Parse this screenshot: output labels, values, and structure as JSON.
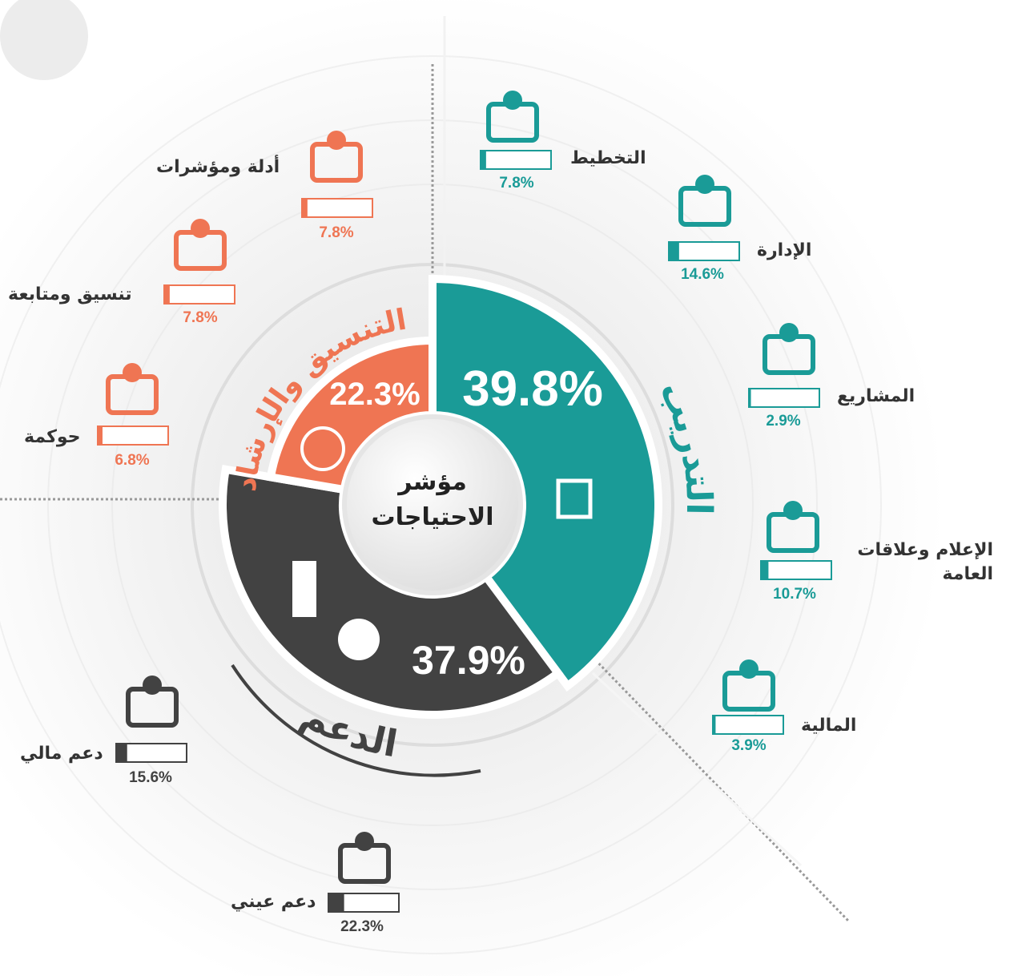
{
  "chart_data": {
    "type": "donut",
    "center_label": [
      "مؤشر",
      "الاحتياجات"
    ],
    "segments": [
      {
        "name": "التدريب",
        "color": "#1a9b97",
        "value": 39.8,
        "value_label": "39.8%",
        "items": [
          {
            "name": "التخطيط",
            "value": 7.8,
            "value_label": "7.8%"
          },
          {
            "name": "الإدارة",
            "value": 14.6,
            "value_label": "14.6%"
          },
          {
            "name": "المشاريع",
            "value": 2.9,
            "value_label": "2.9%"
          },
          {
            "name": "الإعلام وعلاقات العامة",
            "value": 10.7,
            "value_label": "10.7%"
          },
          {
            "name": "المالية",
            "value": 3.9,
            "value_label": "3.9%"
          }
        ]
      },
      {
        "name": "الدعم",
        "color": "#424242",
        "value": 37.9,
        "value_label": "37.9%",
        "items": [
          {
            "name": "دعم مالي",
            "value": 15.6,
            "value_label": "15.6%"
          },
          {
            "name": "دعم عيني",
            "value": 22.3,
            "value_label": "22.3%"
          }
        ]
      },
      {
        "name": "التنسيق والإرشاد",
        "color": "#ef7553",
        "value": 22.3,
        "value_label": "22.3%",
        "items": [
          {
            "name": "أدلة ومؤشرات",
            "value": 7.8,
            "value_label": "7.8%"
          },
          {
            "name": "تنسيق ومتابعة",
            "value": 7.8,
            "value_label": "7.8%"
          },
          {
            "name": "حوكمة",
            "value": 6.8,
            "value_label": "6.8%"
          }
        ]
      }
    ]
  }
}
